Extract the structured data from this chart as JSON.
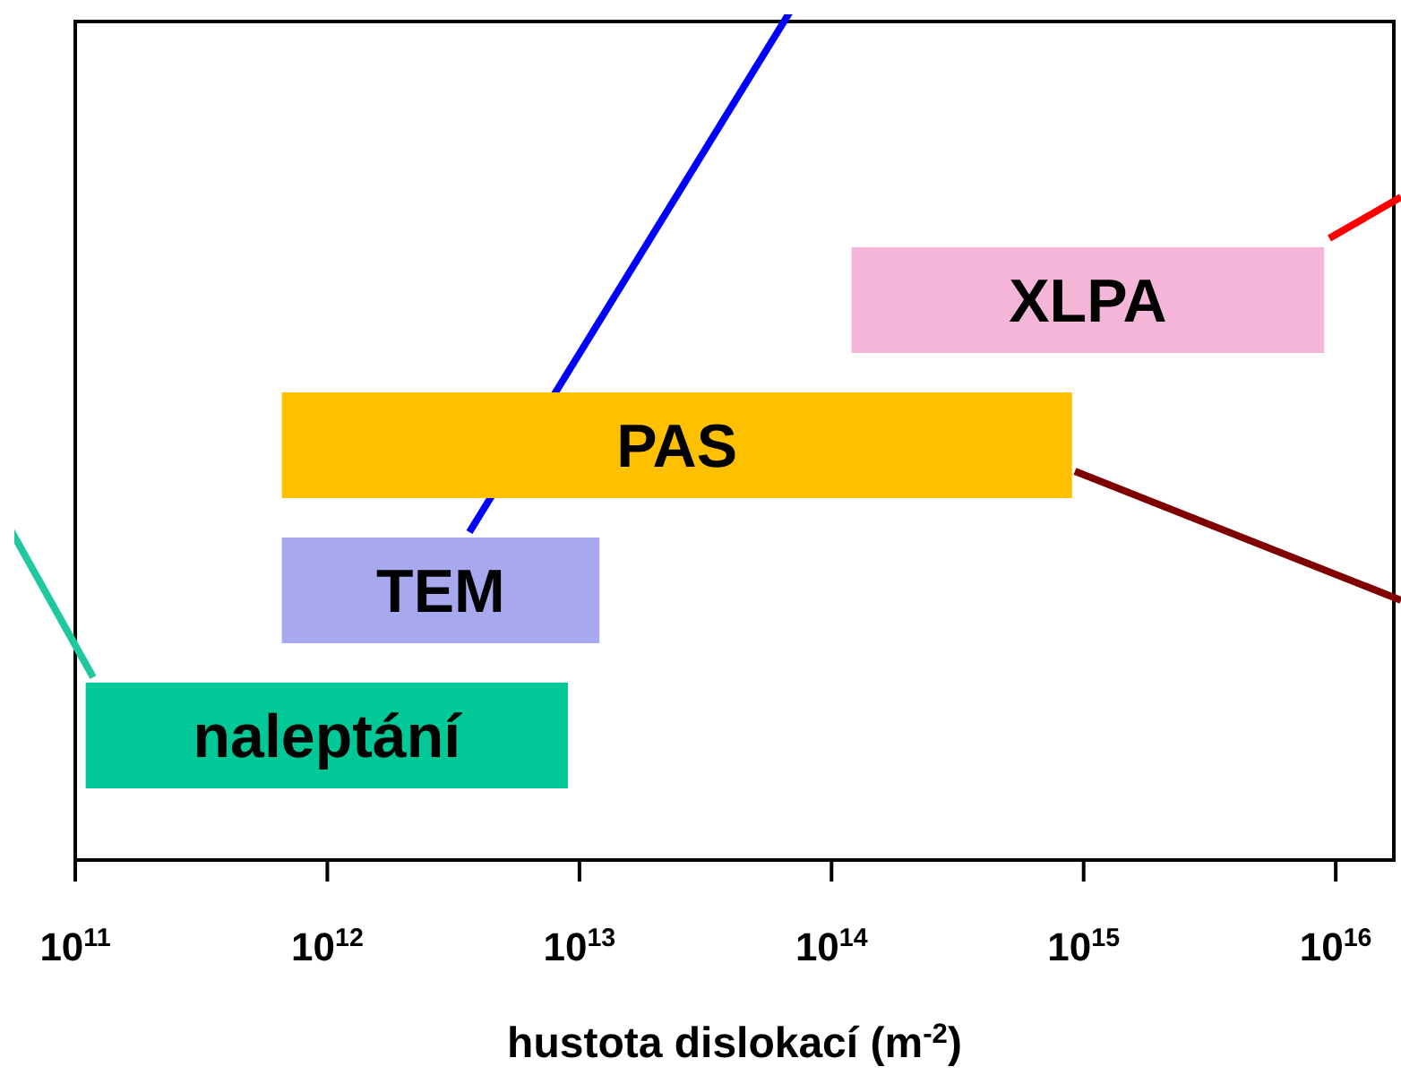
{
  "chart_data": {
    "type": "bar",
    "orientation": "horizontal",
    "xlabel": "hustota dislokací (m$^{-2}$)",
    "categories": [
      "XLPA",
      "PAS",
      "TEM",
      "naleptání"
    ],
    "base": [
      120000000000000.0,
      660000000000.0,
      660000000000.0,
      110000000000.0
    ],
    "values": [
      8880000000000000.0,
      899000000000000.0,
      11340000000000.0,
      8890000000000.0
    ],
    "colors": [
      "#f4b6d8",
      "#ffc000",
      "#a8a8ee",
      "#00c896"
    ],
    "log": "x",
    "xlim": [
      100000000000.0,
      1.7e+16
    ],
    "xticks": [
      {
        "value": 100000000000.0,
        "label": "10$^{11}$"
      },
      {
        "value": 1000000000000.0,
        "label": "10$^{12}$"
      },
      {
        "value": 10000000000000.0,
        "label": "10$^{13}$"
      },
      {
        "value": 100000000000000.0,
        "label": "10$^{14}$"
      },
      {
        "value": 1000000000000000.0,
        "label": "10$^{15}$"
      },
      {
        "value": 1e+16,
        "label": "10$^{16}$"
      }
    ],
    "tick_labels": "x",
    "grid": false,
    "legend": false
  }
}
